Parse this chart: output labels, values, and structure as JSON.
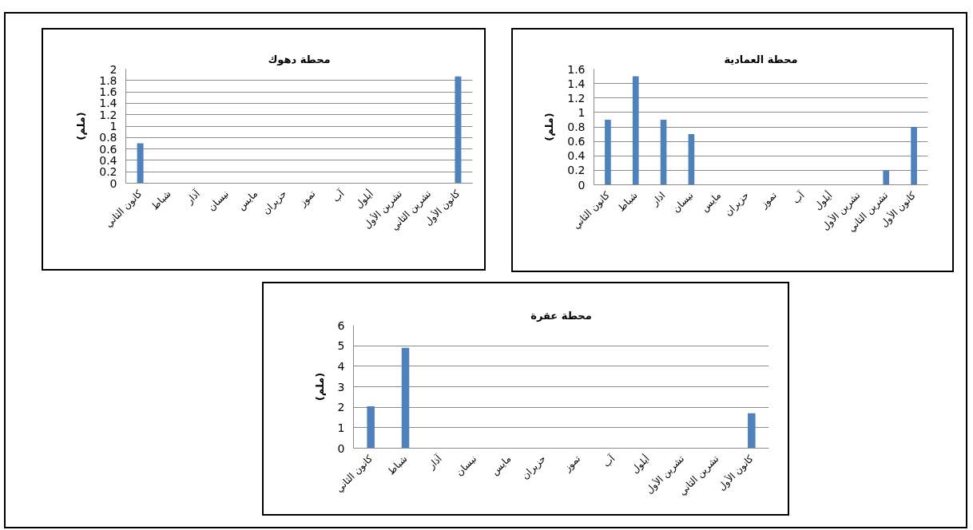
{
  "chart_data": [
    {
      "type": "bar",
      "title": "محطة دهوك",
      "ylabel": "(ملم)",
      "categories": [
        "كانون الثاني",
        "شباط",
        "آذار",
        "نيسان",
        "مايس",
        "حزيران",
        "تموز",
        "آب",
        "أيلول",
        "تشرين الأول",
        "تشرين الثاني",
        "كانون الأول"
      ],
      "values": [
        0.7,
        0,
        0,
        0,
        0,
        0,
        0,
        0,
        0,
        0,
        0,
        1.87
      ],
      "color": "#4f81bd",
      "ylim": [
        0,
        2
      ],
      "yticks": [
        0,
        0.2,
        0.4,
        0.6,
        0.8,
        1,
        1.2,
        1.4,
        1.6,
        1.8,
        2
      ],
      "grid": "y"
    },
    {
      "type": "bar",
      "title": "محطة العمادية",
      "ylabel": "(ملم)",
      "categories": [
        "كانون الثاني",
        "شباط",
        "اذار",
        "نيسان",
        "مايس",
        "حزيران",
        "تموز",
        "آب",
        "أيلول",
        "تشرين الأول",
        "تشرين الثاني",
        "كانون الأول"
      ],
      "values": [
        0.9,
        1.5,
        0.9,
        0.7,
        0,
        0,
        0,
        0,
        0,
        0,
        0.2,
        0.8
      ],
      "color": "#4f81bd",
      "ylim": [
        0,
        1.6
      ],
      "yticks": [
        0,
        0.2,
        0.4,
        0.6,
        0.8,
        1,
        1.2,
        1.4,
        1.6
      ],
      "grid": "y"
    },
    {
      "type": "bar",
      "title": "محطة عقرة",
      "ylabel": "(ملم)",
      "categories": [
        "كانون الثاني",
        "شباط",
        "آذار",
        "نيسان",
        "مايس",
        "حزيران",
        "تموز",
        "آب",
        "أيلول",
        "تشرين الأول",
        "تشرين الثاني",
        "كانون الأول"
      ],
      "values": [
        2.05,
        4.9,
        0,
        0,
        0,
        0,
        0,
        0,
        0,
        0,
        0,
        1.7
      ],
      "color": "#4f81bd",
      "ylim": [
        0,
        6
      ],
      "yticks": [
        0,
        1,
        2,
        3,
        4,
        5,
        6
      ],
      "grid": "y"
    }
  ]
}
